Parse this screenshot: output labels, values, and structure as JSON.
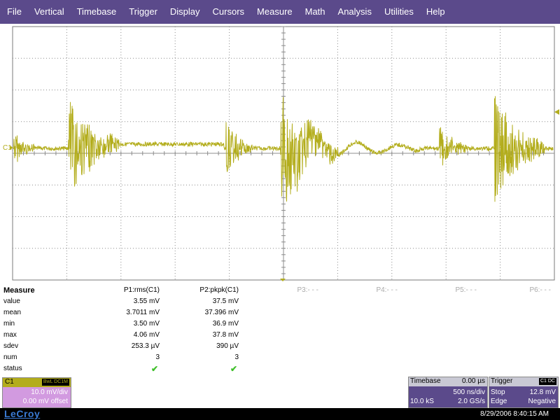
{
  "menu": [
    "File",
    "Vertical",
    "Timebase",
    "Trigger",
    "Display",
    "Cursors",
    "Measure",
    "Math",
    "Analysis",
    "Utilities",
    "Help"
  ],
  "colors": {
    "trace": "#b3ad1c",
    "menubar": "#5b4a8b",
    "channel_panel": "#d29ae0"
  },
  "scope": {
    "channel_label": "C1"
  },
  "measure": {
    "title": "Measure",
    "params": [
      "P1:rms(C1)",
      "P2:pkpk(C1)",
      "P3:- - -",
      "P4:- - -",
      "P5:- - -",
      "P6:- - -"
    ],
    "rows": [
      {
        "label": "value",
        "p1": "3.55 mV",
        "p2": "37.5 mV"
      },
      {
        "label": "mean",
        "p1": "3.7011 mV",
        "p2": "37.396 mV"
      },
      {
        "label": "min",
        "p1": "3.50 mV",
        "p2": "36.9 mV"
      },
      {
        "label": "max",
        "p1": "4.06 mV",
        "p2": "37.8 mV"
      },
      {
        "label": "sdev",
        "p1": "253.3 µV",
        "p2": "390 µV"
      },
      {
        "label": "num",
        "p1": "3",
        "p2": "3"
      }
    ],
    "status_label": "status",
    "status_icon": "check-icon"
  },
  "channel": {
    "name": "C1",
    "flags": "BwL DC1M",
    "scale": "10.0 mV/div",
    "offset": "0.00 mV offset"
  },
  "timebase": {
    "title": "Timebase",
    "delay": "0.00 µs",
    "scale": "500 ns/div",
    "samples": "10.0 kS",
    "rate": "2.0 GS/s"
  },
  "trigger": {
    "title": "Trigger",
    "source": "C1 DC",
    "mode": "Stop",
    "level": "12.8 mV",
    "type": "Edge",
    "slope": "Negative"
  },
  "footer": {
    "logo": "LeCroy",
    "datetime": "8/29/2006 8:40:15 AM"
  }
}
